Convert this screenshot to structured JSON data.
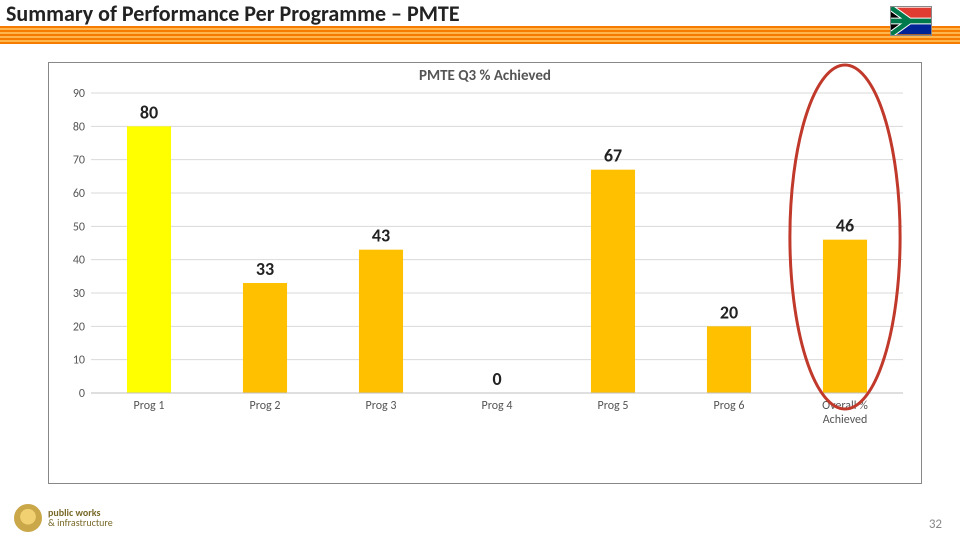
{
  "header": {
    "title": "Summary of Performance Per Programme – PMTE",
    "title_fontsize": 22,
    "stripe_colors": [
      "#f57c00",
      "#ffb74d"
    ]
  },
  "flag": {
    "bands": [
      "#e03c31",
      "#002395",
      "#ffffff",
      "#007a4d",
      "#ffb612",
      "#000000"
    ]
  },
  "chart": {
    "type": "bar",
    "title": "PMTE Q3 % Achieved",
    "title_fontsize": 15,
    "categories": [
      "Prog 1",
      "Prog 2",
      "Prog 3",
      "Prog 4",
      "Prog 5",
      "Prog 6",
      "Overall % Achieved"
    ],
    "values": [
      80,
      33,
      43,
      0,
      67,
      20,
      46
    ],
    "bar_colors": [
      "#ffff00",
      "#ffc000",
      "#ffc000",
      "#ffc000",
      "#ffc000",
      "#ffc000",
      "#ffc000"
    ],
    "bar_width": 0.38,
    "ylim": [
      0,
      90
    ],
    "ytick_step": 10,
    "grid_color": "#d9d9d9",
    "background_color": "#ffffff",
    "label_fontsize": 12,
    "datalabel_fontsize": 18,
    "highlight_ellipse": {
      "index": 6,
      "color": "#c0392b",
      "stroke_width": 3
    }
  },
  "footer": {
    "org_line1": "public works",
    "org_line2": "& infrastructure",
    "page": "32"
  }
}
